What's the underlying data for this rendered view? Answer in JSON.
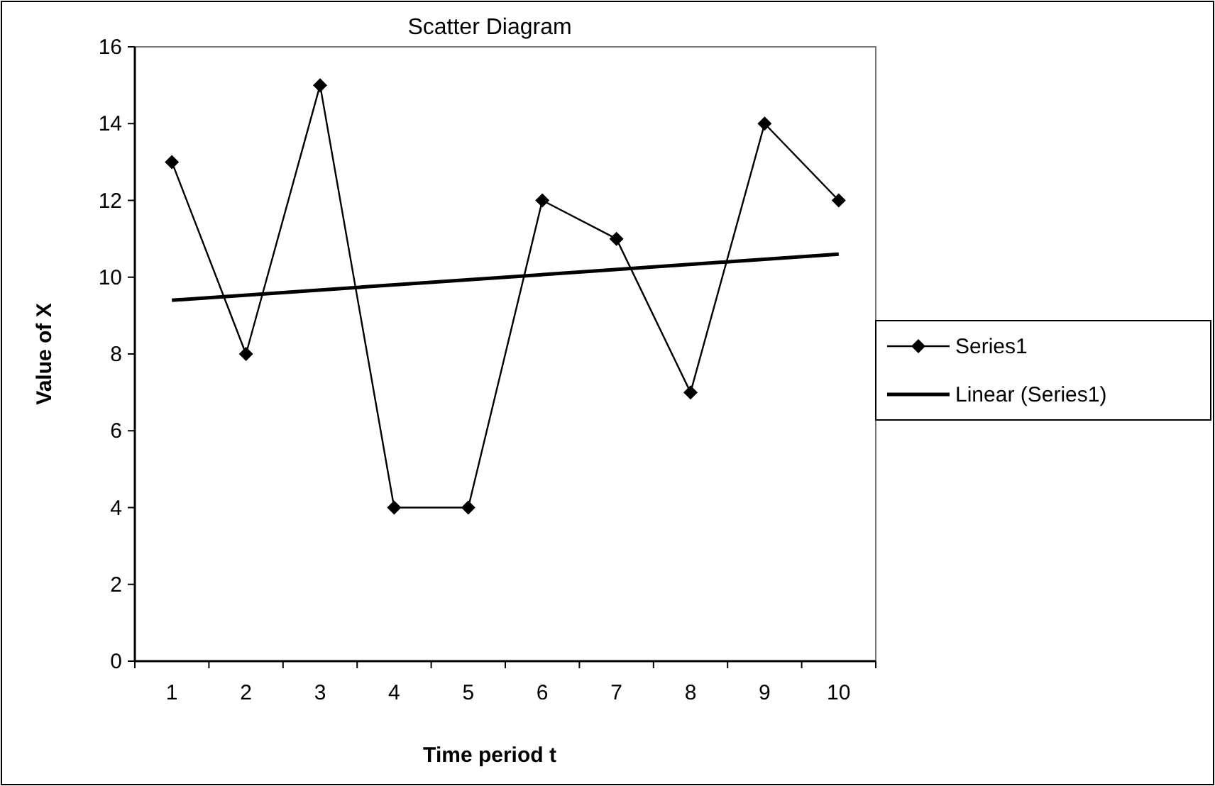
{
  "chart_data": {
    "type": "line",
    "title": "Scatter Diagram",
    "xlabel": "Time period t",
    "ylabel": "Value of X",
    "categories": [
      "1",
      "2",
      "3",
      "4",
      "5",
      "6",
      "7",
      "8",
      "9",
      "10"
    ],
    "series": [
      {
        "name": "Series1",
        "color": "#000000",
        "values": [
          13,
          8,
          15,
          4,
          4,
          12,
          11,
          7,
          14,
          12
        ]
      },
      {
        "name": "Linear (Series1)",
        "color": "#000000",
        "marker": "none",
        "x": [
          "1",
          "10"
        ],
        "values": [
          9.4,
          10.6
        ]
      }
    ],
    "ylim": [
      0,
      16
    ],
    "yticks": [
      0,
      2,
      4,
      6,
      8,
      10,
      12,
      14,
      16
    ],
    "grid": false,
    "legend": "right",
    "marker": "diamond",
    "line_style": "solid"
  }
}
